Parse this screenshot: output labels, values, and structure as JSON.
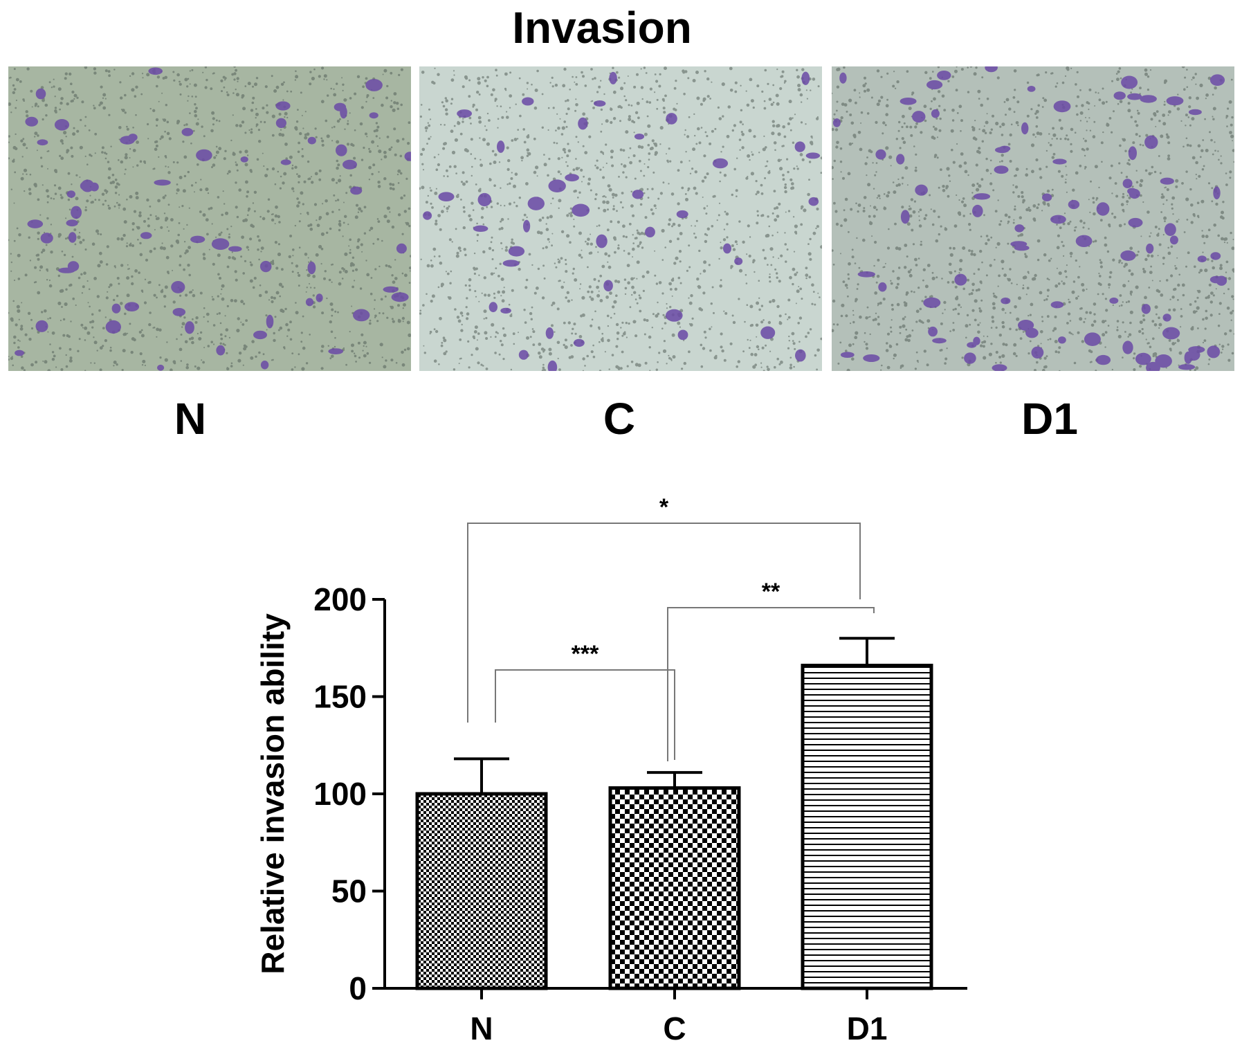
{
  "figure": {
    "title": "Invasion"
  },
  "panels": [
    {
      "label": "N"
    },
    {
      "label": "C"
    },
    {
      "label": "D1"
    }
  ],
  "colors": {
    "micrograph_background": "#a9b8a5",
    "stained_cells": "#6b4aa6",
    "pore_dots": "#55615a",
    "bars_and_axes": "#000000"
  },
  "chart_data": {
    "type": "bar",
    "title": "",
    "xlabel": "",
    "ylabel": "Relative invasion ability",
    "categories": [
      "N",
      "C",
      "D1"
    ],
    "values": [
      100,
      103,
      166
    ],
    "error_upper": [
      118,
      111,
      180
    ],
    "ylim": [
      0,
      200
    ],
    "yticks": [
      0,
      50,
      100,
      150,
      200
    ],
    "patterns": [
      "fine-checker",
      "coarse-checker",
      "horizontal-lines"
    ],
    "grid": false,
    "legend": "none",
    "significance": [
      {
        "pair": [
          "N",
          "C"
        ],
        "label": "***"
      },
      {
        "pair": [
          "C",
          "D1"
        ],
        "label": "**"
      },
      {
        "pair": [
          "N",
          "D1"
        ],
        "label": "*"
      }
    ]
  }
}
